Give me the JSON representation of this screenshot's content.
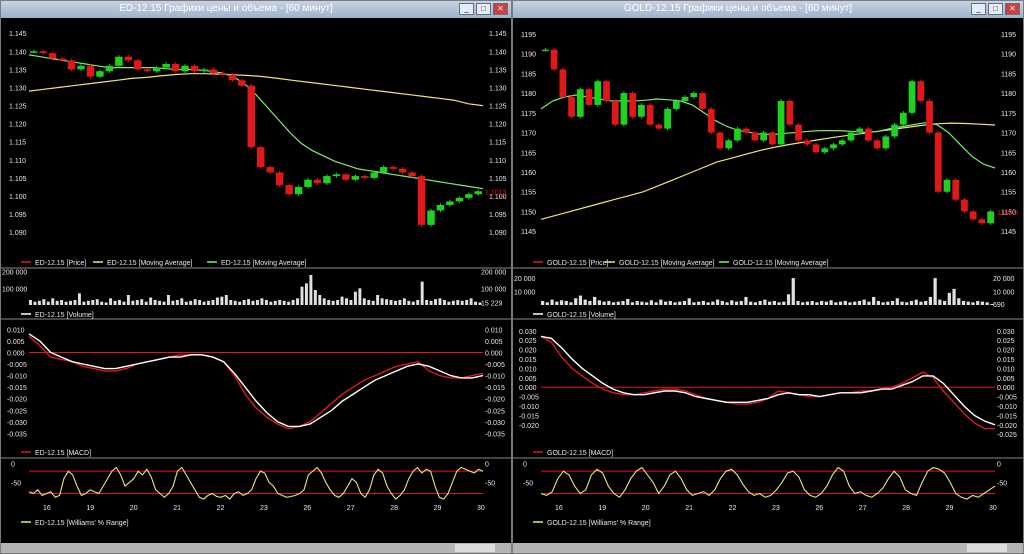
{
  "windows": [
    {
      "id": "ed",
      "title": "ED-12.15 Графики цены и объема - [60 минут]",
      "symbol": "ED-12.15",
      "price": {
        "ylim": [
          1.087,
          1.147
        ],
        "ticks": [
          "1.145",
          "1.140",
          "1.135",
          "1.130",
          "1.125",
          "1.120",
          "1.115",
          "1.110",
          "1.105",
          "1.100",
          "1.095",
          "1.090"
        ],
        "tick_values": [
          1.145,
          1.14,
          1.135,
          1.13,
          1.125,
          1.12,
          1.115,
          1.11,
          1.105,
          1.1,
          1.095,
          1.09
        ],
        "last_label": "1.1013",
        "last_value": 1.1013,
        "close": [
          1.14,
          1.1395,
          1.138,
          1.1375,
          1.135,
          1.136,
          1.133,
          1.1345,
          1.136,
          1.1385,
          1.1375,
          1.135,
          1.1345,
          1.1355,
          1.1365,
          1.1345,
          1.136,
          1.1345,
          1.135,
          1.134,
          1.1335,
          1.132,
          1.1305,
          1.1135,
          1.108,
          1.1065,
          1.103,
          1.1005,
          1.1025,
          1.1045,
          1.1035,
          1.1055,
          1.106,
          1.1045,
          1.1055,
          1.105,
          1.1065,
          1.108,
          1.1075,
          1.1065,
          1.1055,
          1.092,
          1.096,
          1.0975,
          1.0985,
          1.0995,
          1.1005,
          1.1013
        ],
        "ma_green": [
          1.139,
          1.1385,
          1.138,
          1.1375,
          1.137,
          1.1365,
          1.136,
          1.1355,
          1.1355,
          1.1355,
          1.1355,
          1.1355,
          1.1352,
          1.135,
          1.135,
          1.1348,
          1.1345,
          1.134,
          1.133,
          1.131,
          1.128,
          1.1245,
          1.121,
          1.1175,
          1.1145,
          1.1125,
          1.111,
          1.1095,
          1.1085,
          1.1075,
          1.107,
          1.1065,
          1.106,
          1.1055,
          1.105,
          1.1045,
          1.104,
          1.1035,
          1.103,
          1.1025,
          1.102
        ],
        "ma_yellow": [
          1.129,
          1.1295,
          1.13,
          1.1305,
          1.131,
          1.1315,
          1.132,
          1.1325,
          1.1328,
          1.1332,
          1.1336,
          1.1338,
          1.1338,
          1.1337,
          1.1335,
          1.1333,
          1.133,
          1.1325,
          1.132,
          1.1315,
          1.131,
          1.1305,
          1.13,
          1.1295,
          1.129,
          1.1285,
          1.128,
          1.1275,
          1.127,
          1.1265,
          1.1255,
          1.125
        ],
        "legend": [
          "ED-12.15 [Price]",
          "ED-12.15 [Moving Average]",
          "ED-12.15 [Moving Average]"
        ]
      },
      "volume": {
        "ymax": 210000,
        "ticks": [
          "200 000",
          "100 000"
        ],
        "tick_values": [
          200000,
          100000
        ],
        "right_ticks": [
          "200 000",
          "100 000",
          "15 229"
        ],
        "right_tick_values": [
          200000,
          100000,
          15229
        ],
        "values": [
          30000,
          20000,
          25000,
          35000,
          20000,
          40000,
          25000,
          30000,
          20000,
          25000,
          30000,
          70000,
          20000,
          25000,
          30000,
          35000,
          20000,
          15000,
          40000,
          25000,
          30000,
          20000,
          60000,
          25000,
          30000,
          35000,
          20000,
          45000,
          30000,
          25000,
          20000,
          60000,
          25000,
          30000,
          40000,
          20000,
          25000,
          35000,
          30000,
          20000,
          25000,
          30000,
          45000,
          50000,
          60000,
          30000,
          25000,
          20000,
          30000,
          35000,
          25000,
          30000,
          40000,
          30000,
          20000,
          25000,
          30000,
          25000,
          20000,
          30000,
          40000,
          110000,
          130000,
          180000,
          90000,
          60000,
          40000,
          30000,
          25000,
          30000,
          50000,
          40000,
          30000,
          80000,
          100000,
          40000,
          30000,
          25000,
          60000,
          40000,
          35000,
          30000,
          25000,
          30000,
          40000,
          25000,
          20000,
          30000,
          140000,
          30000,
          25000,
          35000,
          40000,
          30000,
          20000,
          25000,
          30000,
          25000,
          30000,
          40000,
          20000,
          15229
        ],
        "legend": "ED-12.15 [Volume]"
      },
      "macd": {
        "ylim": [
          -0.037,
          0.011
        ],
        "ticks": [
          "0.010",
          "0.005",
          "0.000",
          "-0.005",
          "-0.010",
          "-0.015",
          "-0.020",
          "-0.025",
          "-0.030",
          "-0.035"
        ],
        "tick_values": [
          0.01,
          0.005,
          0.0,
          -0.005,
          -0.01,
          -0.015,
          -0.02,
          -0.025,
          -0.03,
          -0.035
        ],
        "right_ticks": [
          "0.010",
          "0.005",
          "0.000",
          "-0.005",
          "-0.010",
          "-0.015",
          "-0.020",
          "-0.025",
          "-0.030",
          "-0.035"
        ],
        "macd": [
          0.007,
          0.003,
          -0.002,
          -0.003,
          -0.004,
          -0.006,
          -0.007,
          -0.008,
          -0.008,
          -0.007,
          -0.005,
          -0.004,
          -0.003,
          -0.002,
          -0.001,
          -0.001,
          -0.001,
          -0.002,
          -0.004,
          -0.01,
          -0.018,
          -0.024,
          -0.028,
          -0.031,
          -0.033,
          -0.032,
          -0.03,
          -0.026,
          -0.022,
          -0.018,
          -0.015,
          -0.012,
          -0.01,
          -0.008,
          -0.006,
          -0.005,
          -0.004,
          -0.008,
          -0.01,
          -0.011,
          -0.011,
          -0.01,
          -0.009
        ],
        "signal": [
          0.008,
          0.005,
          0.0,
          -0.002,
          -0.004,
          -0.005,
          -0.006,
          -0.007,
          -0.007,
          -0.006,
          -0.005,
          -0.004,
          -0.003,
          -0.002,
          -0.002,
          -0.001,
          -0.001,
          -0.002,
          -0.004,
          -0.009,
          -0.015,
          -0.021,
          -0.026,
          -0.03,
          -0.032,
          -0.032,
          -0.031,
          -0.028,
          -0.025,
          -0.021,
          -0.018,
          -0.015,
          -0.012,
          -0.01,
          -0.008,
          -0.006,
          -0.005,
          -0.006,
          -0.008,
          -0.01,
          -0.011,
          -0.011,
          -0.01
        ],
        "legend": "ED-12.15 [MACD]"
      },
      "williams": {
        "ylim": [
          -100,
          10
        ],
        "ticks": [
          "0",
          "-50"
        ],
        "tick_values": [
          0,
          -50
        ],
        "right_ticks": [
          "0",
          "-50"
        ],
        "levels": [
          -20,
          -80
        ],
        "values": [
          -75,
          -80,
          -70,
          -85,
          -80,
          -75,
          -90,
          -85,
          -40,
          -20,
          -30,
          -60,
          -85,
          -80,
          -70,
          -75,
          -80,
          -60,
          -40,
          -20,
          -10,
          -30,
          -60,
          -50,
          -40,
          -20,
          -30,
          -15,
          -35,
          -70,
          -80,
          -90,
          -80,
          -60,
          -20,
          -10,
          -30,
          -50,
          -70,
          -90,
          -95,
          -85,
          -80,
          -88,
          -90,
          -85,
          -95,
          -80,
          -75,
          -85,
          -80,
          -70,
          -40,
          -20,
          -25,
          -50,
          -60,
          -80,
          -85,
          -90,
          -88,
          -85,
          -80,
          -70,
          -30,
          -20,
          -10,
          -25,
          -50,
          -70,
          -85,
          -90,
          -80,
          -60,
          -40,
          -50,
          -80,
          -90,
          -70,
          -30,
          -15,
          -25,
          -60,
          -80,
          -95,
          -85,
          -70,
          -40,
          -20,
          -10,
          -25,
          -15,
          -20,
          -60,
          -90,
          -95,
          -80,
          -50,
          -20,
          -10,
          -15,
          -20,
          -25,
          -15,
          -20
        ],
        "legend": "ED-12.15 [Williams' % Range]"
      },
      "xaxis": [
        "16",
        "19",
        "20",
        "21",
        "22",
        "23",
        "26",
        "27",
        "28",
        "29",
        "30"
      ]
    },
    {
      "id": "gold",
      "title": "GOLD-12.15 Графики цены и объема - [60 минут]",
      "symbol": "GOLD-12.15",
      "price": {
        "ylim": [
          1142,
          1197
        ],
        "ticks": [
          "1195",
          "1190",
          "1185",
          "1180",
          "1175",
          "1170",
          "1165",
          "1160",
          "1155",
          "1150",
          "1145"
        ],
        "tick_values": [
          1195,
          1190,
          1185,
          1180,
          1175,
          1170,
          1165,
          1160,
          1155,
          1150,
          1145
        ],
        "last_label": "1149.9",
        "last_value": 1149.9,
        "close": [
          1191,
          1186,
          1179,
          1174,
          1181,
          1177,
          1183,
          1178,
          1172,
          1180,
          1174,
          1177,
          1172,
          1171,
          1176,
          1178,
          1179,
          1180,
          1176,
          1170,
          1166,
          1168,
          1171,
          1170,
          1168,
          1170,
          1167,
          1178,
          1172,
          1168,
          1167,
          1165,
          1166,
          1167,
          1168,
          1170,
          1171,
          1168,
          1166,
          1169,
          1172,
          1175,
          1183,
          1178,
          1170,
          1155,
          1158,
          1153,
          1150,
          1148,
          1147,
          1150
        ],
        "ma_green": [
          1176,
          1178,
          1179,
          1179.5,
          1179,
          1178.5,
          1178,
          1178,
          1178,
          1178.2,
          1178.5,
          1178.3,
          1178,
          1177,
          1175,
          1173,
          1171.5,
          1170.5,
          1170,
          1169.5,
          1169.5,
          1169.8,
          1170,
          1170.3,
          1170.5,
          1170.5,
          1170.4,
          1170.2,
          1170,
          1170.3,
          1171,
          1171.5,
          1172,
          1172.5,
          1172,
          1170,
          1167,
          1164,
          1162,
          1161
        ],
        "ma_yellow": [
          1148,
          1149,
          1150,
          1151,
          1152,
          1153,
          1154,
          1155,
          1156.5,
          1158,
          1159.5,
          1161,
          1162.5,
          1163.5,
          1164.5,
          1165.5,
          1166.3,
          1167,
          1167.6,
          1168.2,
          1168.8,
          1169.3,
          1169.8,
          1170.3,
          1170.8,
          1171.3,
          1171.8,
          1172.2,
          1172.4,
          1172.3,
          1172.1,
          1171.9
        ],
        "legend": [
          "GOLD-12.15 [Price]",
          "GOLD-12.15 [Moving Average]",
          "GOLD-12.15 [Moving Average]"
        ]
      },
      "volume": {
        "ymax": 26000,
        "ticks": [
          "20 000",
          "10 000"
        ],
        "tick_values": [
          20000,
          10000
        ],
        "right_ticks": [
          "20 000",
          "10 000",
          "690"
        ],
        "right_tick_values": [
          20000,
          10000,
          690
        ],
        "values": [
          3000,
          2000,
          4000,
          2500,
          3500,
          3000,
          2000,
          5000,
          7000,
          4000,
          3000,
          6000,
          3500,
          2500,
          3000,
          2000,
          2500,
          3000,
          4500,
          2000,
          3000,
          2500,
          2000,
          3500,
          2000,
          4000,
          2500,
          3000,
          2000,
          2500,
          3000,
          5000,
          2000,
          2500,
          3000,
          2000,
          2500,
          4000,
          3000,
          2000,
          3500,
          2500,
          3000,
          6000,
          2500,
          2000,
          3000,
          4000,
          2500,
          3000,
          2000,
          2500,
          8000,
          20000,
          3000,
          2000,
          2500,
          3000,
          2000,
          3000,
          2500,
          3500,
          2000,
          2500,
          3000,
          2000,
          2500,
          3000,
          4000,
          2500,
          6000,
          3000,
          2000,
          2500,
          3000,
          5000,
          2500,
          2000,
          3000,
          4000,
          2500,
          3000,
          6000,
          20000,
          4000,
          3000,
          9000,
          12000,
          5000,
          3000,
          2500,
          2000,
          3000,
          2500,
          2000,
          690
        ],
        "legend": "GOLD-12.15 [Volume]"
      },
      "macd": {
        "ylim": [
          -0.027,
          0.032
        ],
        "ticks": [
          "0.030",
          "0.025",
          "0.020",
          "0.015",
          "0.010",
          "0.005",
          "0.000",
          "-0.005",
          "-0.010",
          "-0.015",
          "-0.020"
        ],
        "tick_values": [
          0.03,
          0.025,
          0.02,
          0.015,
          0.01,
          0.005,
          0.0,
          -0.005,
          -0.01,
          -0.015,
          -0.02
        ],
        "right_ticks": [
          "0.030",
          "0.025",
          "0.020",
          "0.015",
          "0.010",
          "0.005",
          "0.000",
          "-0.005",
          "-0.010",
          "-0.015",
          "-0.020",
          "-0.025"
        ],
        "right_tick_values": [
          0.03,
          0.025,
          0.02,
          0.015,
          0.01,
          0.005,
          0.0,
          -0.005,
          -0.01,
          -0.015,
          -0.02,
          -0.025
        ],
        "macd": [
          0.027,
          0.024,
          0.016,
          0.01,
          0.006,
          0.002,
          -0.001,
          -0.003,
          -0.004,
          -0.004,
          -0.003,
          -0.002,
          -0.001,
          -0.001,
          -0.002,
          -0.004,
          -0.006,
          -0.007,
          -0.008,
          -0.009,
          -0.009,
          -0.008,
          -0.006,
          -0.002,
          -0.003,
          -0.004,
          -0.005,
          -0.005,
          -0.004,
          -0.003,
          -0.003,
          -0.002,
          -0.002,
          -0.001,
          0.0,
          0.002,
          0.005,
          0.008,
          0.005,
          -0.002,
          -0.008,
          -0.014,
          -0.019,
          -0.022,
          -0.022
        ],
        "signal": [
          0.027,
          0.026,
          0.021,
          0.015,
          0.01,
          0.006,
          0.002,
          -0.001,
          -0.003,
          -0.004,
          -0.004,
          -0.003,
          -0.002,
          -0.002,
          -0.003,
          -0.005,
          -0.006,
          -0.007,
          -0.008,
          -0.008,
          -0.008,
          -0.007,
          -0.006,
          -0.004,
          -0.003,
          -0.004,
          -0.004,
          -0.005,
          -0.004,
          -0.003,
          -0.003,
          -0.003,
          -0.002,
          -0.001,
          -0.001,
          0.001,
          0.003,
          0.006,
          0.006,
          0.002,
          -0.004,
          -0.01,
          -0.015,
          -0.018,
          -0.02
        ],
        "legend": "GOLD-12.15 [MACD]"
      },
      "williams": {
        "ylim": [
          -100,
          10
        ],
        "ticks": [
          "0",
          "-50"
        ],
        "tick_values": [
          0,
          -50
        ],
        "right_ticks": [
          "0",
          "-50"
        ],
        "levels": [
          -20,
          -80
        ],
        "values": [
          -80,
          -85,
          -75,
          -40,
          -20,
          -30,
          -60,
          -80,
          -70,
          -30,
          -15,
          -25,
          -60,
          -80,
          -90,
          -70,
          -40,
          -20,
          -10,
          -30,
          -50,
          -80,
          -60,
          -30,
          -20,
          -40,
          -70,
          -85,
          -80,
          -75,
          -85,
          -70,
          -40,
          -20,
          -15,
          -30,
          -55,
          -75,
          -85,
          -80,
          -90,
          -85,
          -70,
          -50,
          -25,
          -20,
          -35,
          -70,
          -85,
          -90,
          -80,
          -60,
          -30,
          -10,
          -20,
          -60,
          -80,
          -75,
          -85,
          -90,
          -80,
          -65,
          -40,
          -20,
          -35,
          -70,
          -80,
          -85,
          -50,
          -20,
          -10,
          -15,
          -25,
          -50,
          -80,
          -90,
          -95,
          -85,
          -90,
          -80,
          -70,
          -60
        ],
        "legend": "GOLD-12.15 [Williams' % Range]"
      },
      "xaxis": [
        "16",
        "19",
        "20",
        "21",
        "22",
        "23",
        "26",
        "27",
        "28",
        "29",
        "30"
      ]
    }
  ],
  "colors": {
    "bull": "#1fd21f",
    "bear": "#e01818",
    "ma_green": "#7dea6e",
    "ma_yellow": "#f1e27a",
    "macd_line": "#e01818",
    "signal_line": "#ffffff",
    "level_line": "#e01818",
    "williams_line": "#f1e27a",
    "volume_bar": "#e0e0e0",
    "axis_text": "#e8e8e8",
    "last_price": "#e01818",
    "divider": "#8a8a8a"
  }
}
